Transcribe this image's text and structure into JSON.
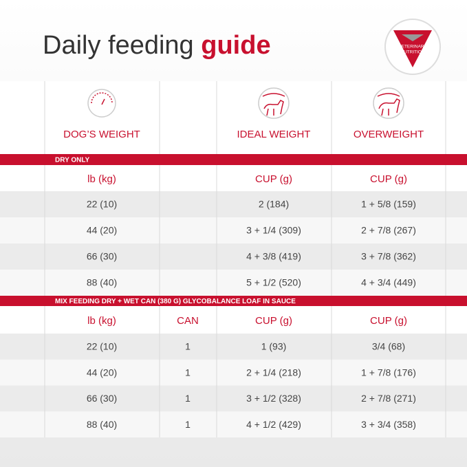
{
  "title": {
    "text": "Daily feeding",
    "emphasis": "guide"
  },
  "badge": [
    "VETERINARY",
    "NUTRITION"
  ],
  "table": {
    "headers": [
      "DOG’S WEIGHT",
      "IDEAL WEIGHT",
      "OVERWEIGHT"
    ],
    "sections": [
      {
        "label": "DRY ONLY",
        "columns": [
          "lb (kg)",
          "CUP (g)",
          "CUP (g)"
        ],
        "rows": [
          [
            "22 (10)",
            "2 (184)",
            "1 + 5/8 (159)"
          ],
          [
            "44 (20)",
            "3 + 1/4 (309)",
            "2 + 7/8 (267)"
          ],
          [
            "66 (30)",
            "4 + 3/8 (419)",
            "3 + 7/8 (362)"
          ],
          [
            "88 (40)",
            "5 + 1/2 (520)",
            "4 + 3/4 (449)"
          ]
        ]
      },
      {
        "label": "MIX FEEDING DRY + WET CAN (380 G) GLYCOBALANCE LOAF IN SAUCE",
        "columns": [
          "lb (kg)",
          "CAN",
          "CUP (g)",
          "CUP (g)"
        ],
        "rows": [
          [
            "22 (10)",
            "1",
            "1 (93)",
            "3/4 (68)"
          ],
          [
            "44 (20)",
            "1",
            "2 + 1/4 (218)",
            "1 + 7/8 (176)"
          ],
          [
            "66 (30)",
            "1",
            "3 + 1/2 (328)",
            "2 + 7/8 (271)"
          ],
          [
            "88 (40)",
            "1",
            "4 + 1/2 (429)",
            "3 + 3/4 (358)"
          ]
        ]
      }
    ]
  }
}
